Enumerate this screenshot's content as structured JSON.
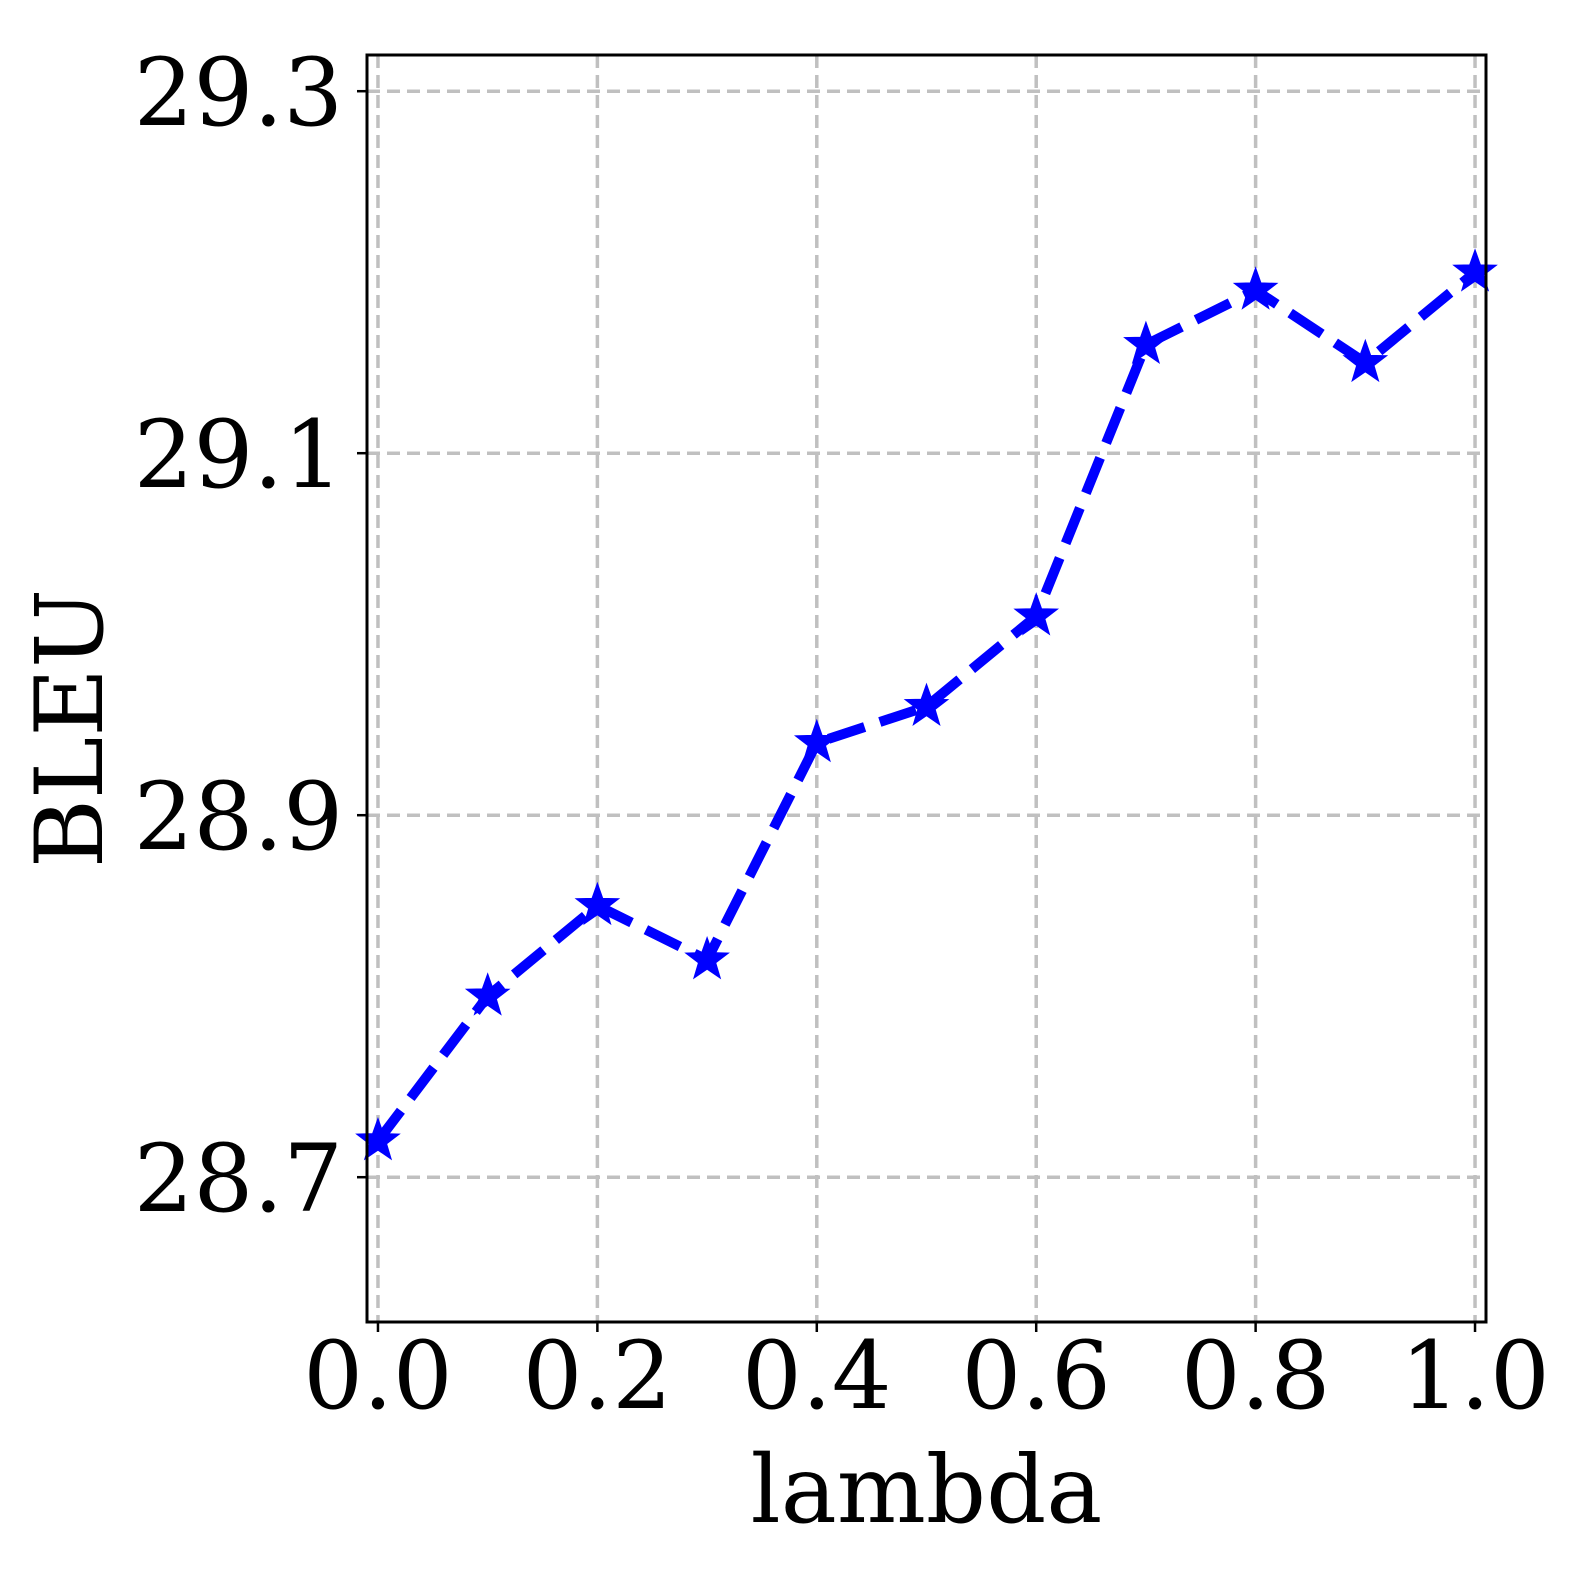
{
  "chart_data": {
    "type": "line",
    "title": "",
    "xlabel": "lambda",
    "ylabel": "BLEU",
    "x": [
      0.0,
      0.1,
      0.2,
      0.3,
      0.4,
      0.5,
      0.6,
      0.7,
      0.8,
      0.9,
      1.0
    ],
    "series": [
      {
        "values": [
          28.72,
          28.8,
          28.85,
          28.82,
          28.94,
          28.96,
          29.01,
          29.16,
          29.19,
          29.15,
          29.2
        ],
        "color": "#0000ff",
        "line_style": "dashed",
        "marker": "star"
      }
    ],
    "xlim": [
      -0.01,
      1.01
    ],
    "ylim": [
      28.62,
      29.32
    ],
    "xticks": [
      0.0,
      0.2,
      0.4,
      0.6,
      0.8,
      1.0
    ],
    "xtick_labels": [
      "0.0",
      "0.2",
      "0.4",
      "0.6",
      "0.8",
      "1.0"
    ],
    "yticks": [
      28.7,
      28.9,
      29.1,
      29.3
    ],
    "ytick_labels": [
      "28.7",
      "28.9",
      "29.1",
      "29.3"
    ],
    "grid": true,
    "grid_color": "#c0c0c0",
    "legend": "none"
  }
}
